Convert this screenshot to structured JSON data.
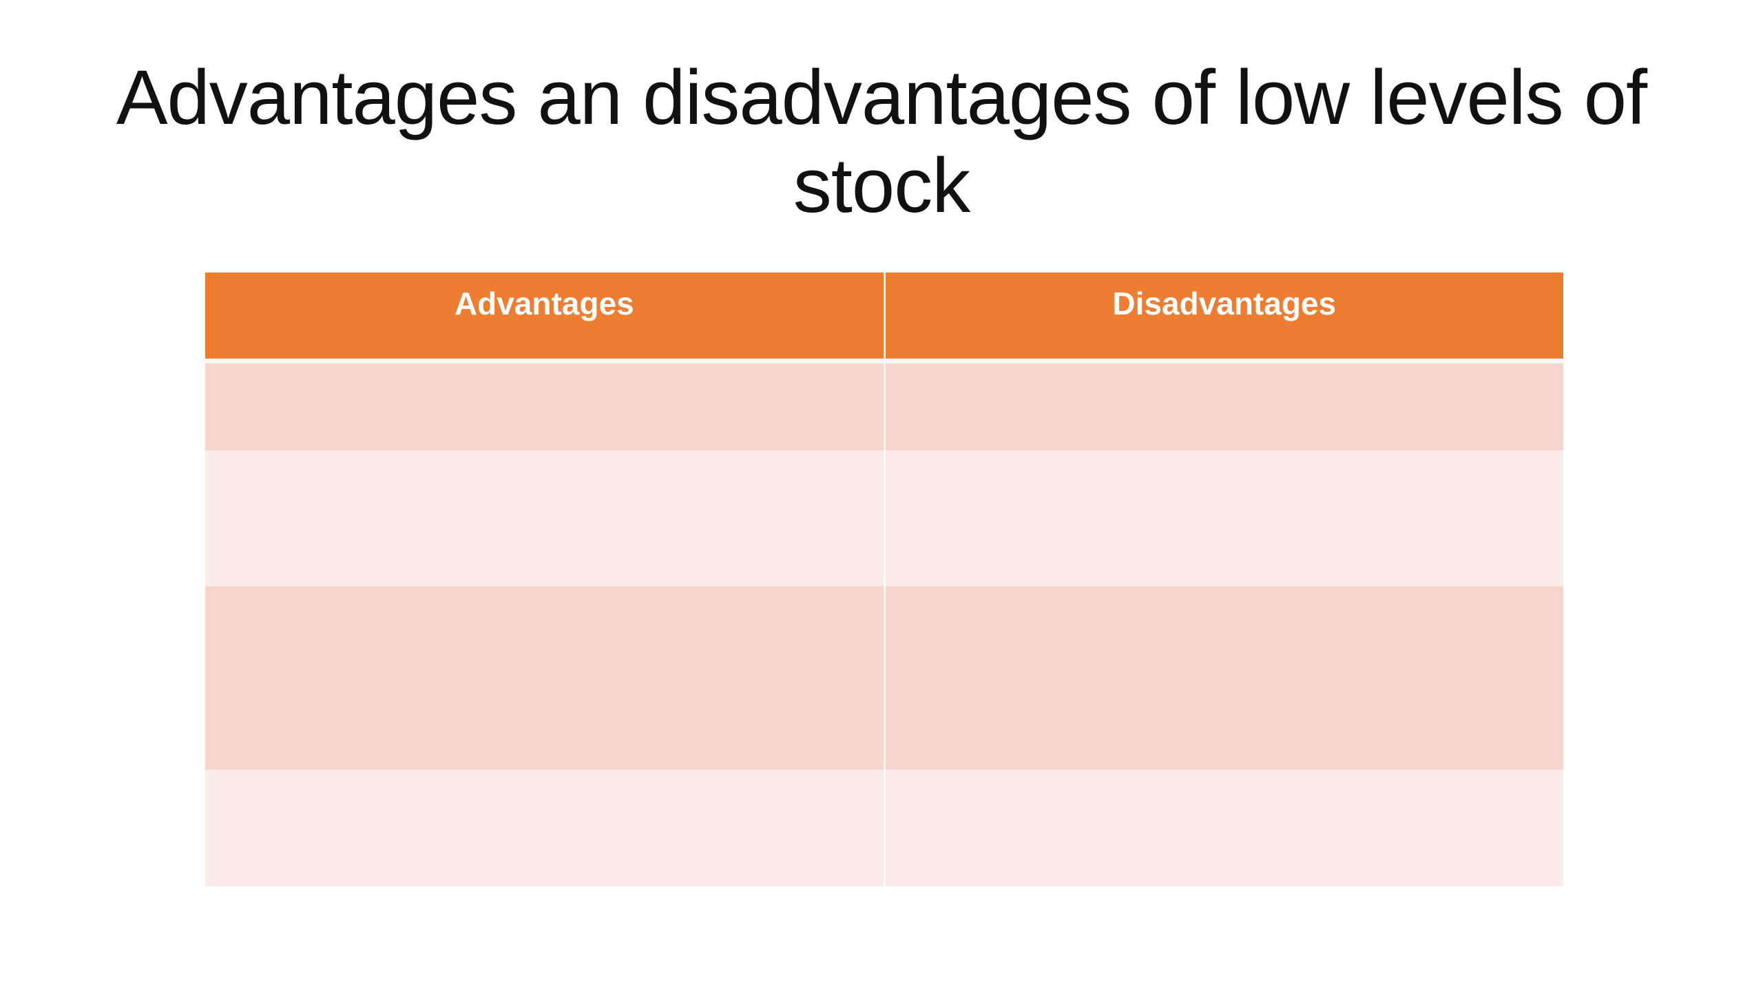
{
  "slide": {
    "title": "Advantages an disadvantages of low levels of stock"
  },
  "table": {
    "headers": [
      "Advantages",
      "Disadvantages"
    ],
    "rows": [
      [
        "",
        ""
      ],
      [
        "",
        ""
      ],
      [
        "",
        ""
      ],
      [
        "",
        ""
      ]
    ]
  },
  "colors": {
    "header_fill": "#ed7d31",
    "row_band_dark": "#f8d5cc",
    "row_band_light": "#fbebe7"
  }
}
